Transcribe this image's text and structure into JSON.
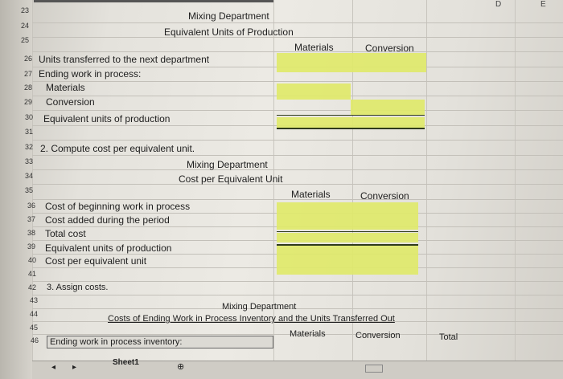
{
  "columns": {
    "d": "D",
    "e": "E"
  },
  "section1": {
    "title": "Mixing Department",
    "subtitle": "Equivalent Units of Production",
    "materials": "Materials",
    "conversion": "Conversion",
    "rows": [
      "Units transferred to the next department",
      "Ending work in process:",
      "Materials",
      "Conversion",
      "Equivalent units of production"
    ]
  },
  "section2": {
    "heading": "2. Compute cost per equivalent unit.",
    "title": "Mixing Department",
    "subtitle": "Cost per Equivalent Unit",
    "materials": "Materials",
    "conversion": "Conversion",
    "rows": [
      "Cost of beginning work in process",
      "Cost added during the period",
      "Total cost",
      "Equivalent units of production",
      "Cost per equivalent unit"
    ]
  },
  "section3": {
    "heading": "3. Assign costs.",
    "title": "Mixing Department",
    "subtitle": "Costs of Ending Work in Process Inventory and the Units Transferred Out",
    "materials": "Materials",
    "conversion": "Conversion",
    "total": "Total",
    "row46": "Ending work in process inventory:"
  },
  "rownums": [
    "23",
    "24",
    "25",
    "26",
    "27",
    "28",
    "29",
    "30",
    "31",
    "32",
    "33",
    "34",
    "35",
    "36",
    "37",
    "38",
    "39",
    "40",
    "41",
    "42",
    "43",
    "44",
    "45",
    "46"
  ],
  "sheet_tab": "Sheet1"
}
